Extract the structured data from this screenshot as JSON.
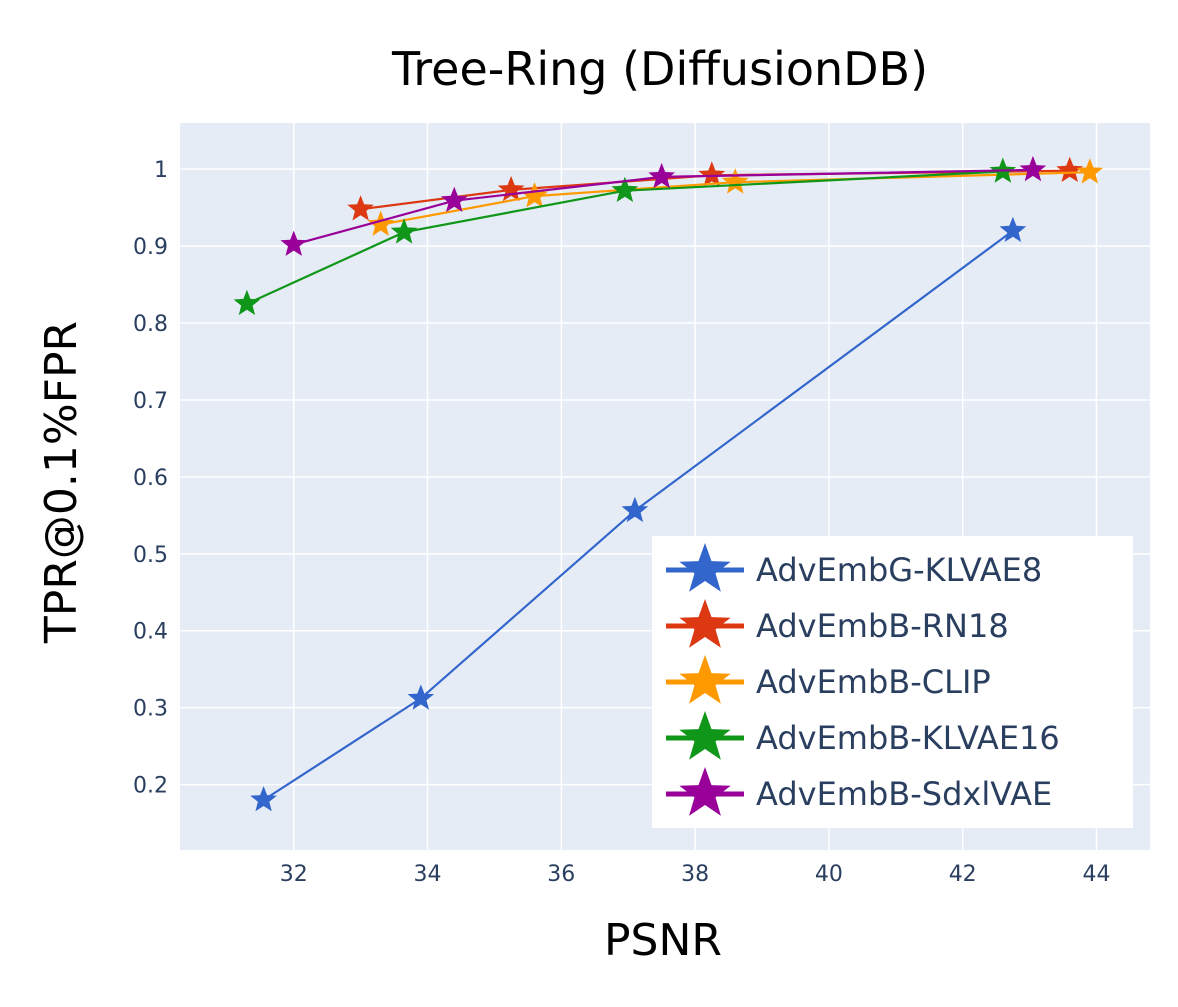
{
  "chart_data": {
    "type": "line",
    "title": "Tree-Ring (DiffusionDB)",
    "xlabel": "PSNR",
    "ylabel": "TPR@0.1%FPR",
    "xlim": [
      30.3,
      44.8
    ],
    "ylim": [
      0.115,
      1.06
    ],
    "xticks": [
      32,
      34,
      36,
      38,
      40,
      42,
      44
    ],
    "yticks": [
      0.2,
      0.3,
      0.4,
      0.5,
      0.6,
      0.7,
      0.8,
      0.9,
      1
    ],
    "grid": true,
    "plot_bgcolor": "#E5ECF6",
    "legend_position": "bottom-right",
    "marker": "star",
    "series": [
      {
        "name": "AdvEmbG-KLVAE8",
        "color": "#3366CC",
        "points": [
          [
            31.55,
            0.18
          ],
          [
            33.9,
            0.312
          ],
          [
            37.1,
            0.556
          ],
          [
            42.75,
            0.92
          ]
        ]
      },
      {
        "name": "AdvEmbB-RN18",
        "color": "#DC3912",
        "points": [
          [
            33.0,
            0.948
          ],
          [
            35.25,
            0.973
          ],
          [
            38.25,
            0.992
          ],
          [
            43.6,
            0.998
          ]
        ]
      },
      {
        "name": "AdvEmbB-CLIP",
        "color": "#FF9900",
        "points": [
          [
            33.3,
            0.928
          ],
          [
            35.6,
            0.965
          ],
          [
            38.6,
            0.983
          ],
          [
            43.9,
            0.996
          ]
        ]
      },
      {
        "name": "AdvEmbB-KLVAE16",
        "color": "#109618",
        "points": [
          [
            31.3,
            0.825
          ],
          [
            33.65,
            0.918
          ],
          [
            36.95,
            0.972
          ],
          [
            42.6,
            0.997
          ]
        ]
      },
      {
        "name": "AdvEmbB-SdxlVAE",
        "color": "#990099",
        "points": [
          [
            32.0,
            0.902
          ],
          [
            34.4,
            0.959
          ],
          [
            37.5,
            0.99
          ],
          [
            43.05,
            0.999
          ]
        ]
      }
    ]
  }
}
